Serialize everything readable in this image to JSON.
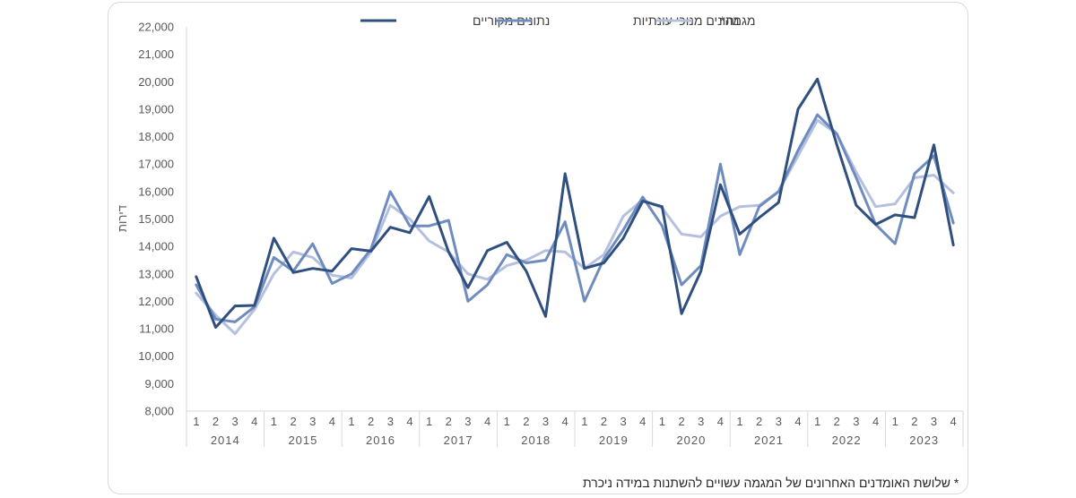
{
  "chart_data": {
    "type": "line",
    "ylabel": "דירות",
    "ylim": [
      8000,
      22000
    ],
    "yticks": [
      "8,000",
      "9,000",
      "10,000",
      "11,000",
      "12,000",
      "13,000",
      "14,000",
      "15,000",
      "16,000",
      "17,000",
      "18,000",
      "19,000",
      "20,000",
      "21,000",
      "22,000"
    ],
    "quarters": [
      "1",
      "2",
      "3",
      "4"
    ],
    "years": [
      "2014",
      "2015",
      "2016",
      "2017",
      "2018",
      "2019",
      "2020",
      "2021",
      "2022",
      "2023"
    ],
    "legend_position": "top-center",
    "series": [
      {
        "name": "נתונים מקוריים",
        "color": "#2f4f7f",
        "values": [
          12900,
          11050,
          11830,
          11850,
          14300,
          13050,
          13200,
          13100,
          13920,
          13830,
          14700,
          14500,
          15820,
          13800,
          12500,
          13850,
          14150,
          13100,
          11450,
          16650,
          13200,
          13400,
          14300,
          15650,
          15450,
          11550,
          13100,
          16250,
          14450,
          15050,
          15600,
          19000,
          20100,
          17700,
          15500,
          14800,
          15150,
          15050,
          17700,
          14050
        ]
      },
      {
        "name": "נתונים מנוכי עונתיות",
        "color": "#6f8cbf",
        "values": [
          12600,
          11350,
          11250,
          11800,
          13600,
          13100,
          14100,
          12650,
          13000,
          13900,
          16000,
          14750,
          14750,
          14950,
          12000,
          12600,
          13700,
          13400,
          13500,
          14900,
          12000,
          13550,
          14600,
          15800,
          14750,
          12600,
          13300,
          17000,
          13700,
          15450,
          16000,
          17500,
          18800,
          18100,
          16500,
          14800,
          14100,
          16650,
          17300,
          14850
        ]
      },
      {
        "name": "מגמה*",
        "color": "#b4c0dd",
        "values": [
          12300,
          11500,
          10820,
          11700,
          13000,
          13800,
          13600,
          12950,
          12850,
          13800,
          15500,
          15000,
          14200,
          13800,
          13000,
          12800,
          13300,
          13500,
          13850,
          13800,
          13200,
          13700,
          15100,
          15700,
          15400,
          14450,
          14350,
          15100,
          15450,
          15500,
          16000,
          17300,
          18600,
          18100,
          16700,
          15450,
          15550,
          16500,
          16600,
          15950
        ]
      }
    ],
    "footnote": "* שלושת האומדנים האחרונים של המגמה עשויים להשתנות במידה ניכרת"
  }
}
